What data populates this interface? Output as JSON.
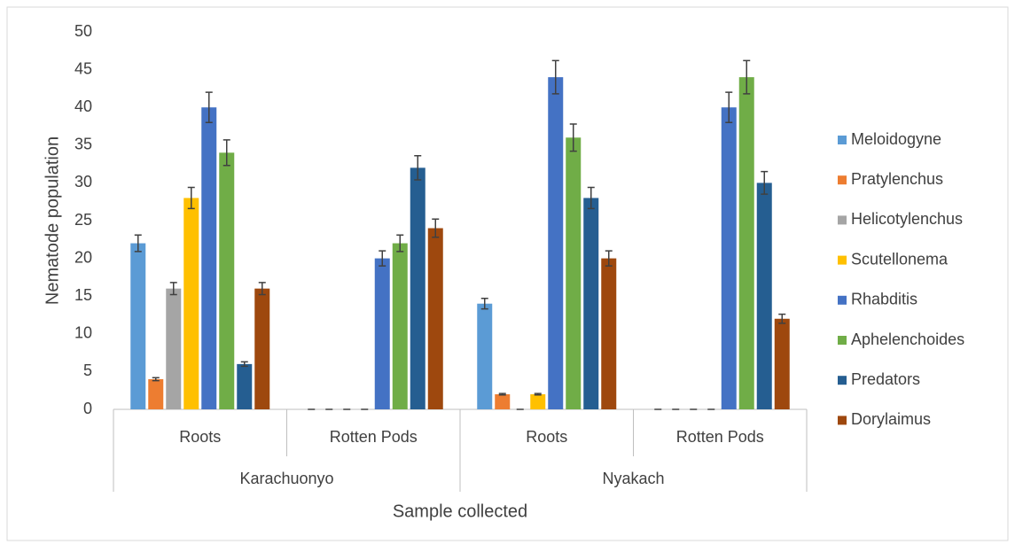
{
  "chart_data": {
    "type": "bar",
    "y_label": "Nematode population",
    "x_label": "Sample collected",
    "groups": [
      {
        "name": "Karachuonyo",
        "categories": [
          "Roots",
          "Rotten Pods"
        ]
      },
      {
        "name": "Nyakach",
        "categories": [
          "Roots",
          "Rotten Pods"
        ]
      }
    ],
    "series": [
      {
        "name": "Meloidogyne",
        "color": "#5b9bd5",
        "values": [
          22,
          0,
          14,
          0
        ],
        "errors": [
          1.1,
          0,
          0.7,
          0
        ]
      },
      {
        "name": "Pratylenchus",
        "color": "#ed7d31",
        "values": [
          4,
          0,
          2,
          0
        ],
        "errors": [
          0.2,
          0,
          0.1,
          0
        ]
      },
      {
        "name": "Helicotylenchus",
        "color": "#a5a5a5",
        "values": [
          16,
          0,
          0,
          0
        ],
        "errors": [
          0.8,
          0,
          0,
          0
        ]
      },
      {
        "name": "Scutellonema",
        "color": "#ffc000",
        "values": [
          28,
          0,
          2,
          0
        ],
        "errors": [
          1.4,
          0,
          0.1,
          0
        ]
      },
      {
        "name": "Rhabditis",
        "color": "#4472c4",
        "values": [
          40,
          20,
          44,
          40
        ],
        "errors": [
          2,
          1,
          2.2,
          2
        ]
      },
      {
        "name": "Aphelenchoides",
        "color": "#70ad47",
        "values": [
          34,
          22,
          36,
          44
        ],
        "errors": [
          1.7,
          1.1,
          1.8,
          2.2
        ]
      },
      {
        "name": "Predators",
        "color": "#255e91",
        "values": [
          6,
          32,
          28,
          30
        ],
        "errors": [
          0.3,
          1.6,
          1.4,
          1.5
        ]
      },
      {
        "name": "Dorylaimus",
        "color": "#9e480e",
        "values": [
          16,
          24,
          20,
          12
        ],
        "errors": [
          0.8,
          1.2,
          1,
          0.6
        ]
      }
    ],
    "ylim": [
      0,
      50
    ],
    "yticks": [
      0,
      5,
      10,
      15,
      20,
      25,
      30,
      35,
      40,
      45,
      50
    ],
    "grid": false,
    "legend": "right"
  }
}
